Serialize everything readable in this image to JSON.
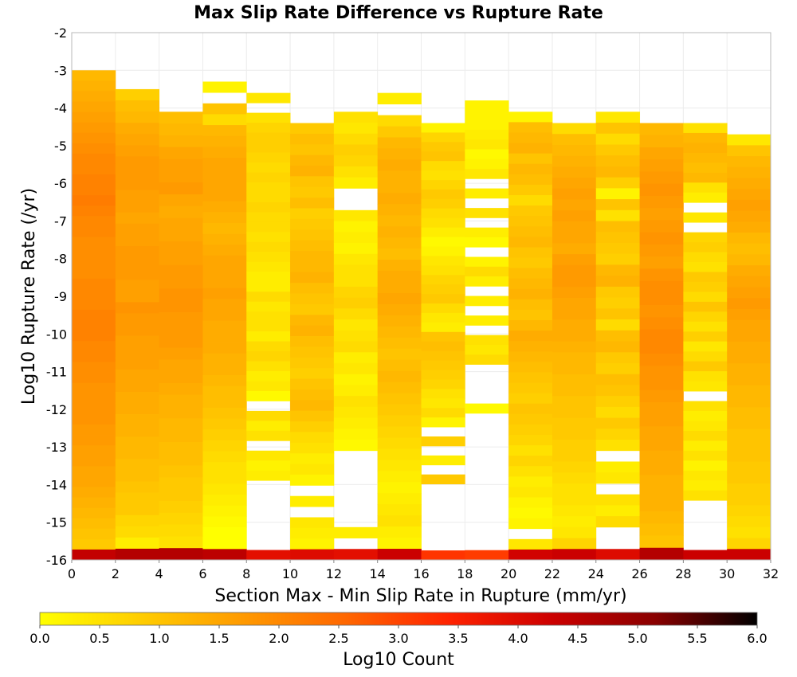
{
  "chart_data": {
    "type": "heatmap",
    "title": "Max Slip Rate Difference vs Rupture Rate",
    "xlabel": "Section Max - Min Slip Rate in Rupture (mm/yr)",
    "ylabel": "Log10 Rupture Rate (/yr)",
    "colorbar_label": "Log10 Count",
    "xlim": [
      0,
      32
    ],
    "ylim": [
      -16,
      -2
    ],
    "x_ticks": [
      "0",
      "2",
      "4",
      "6",
      "8",
      "10",
      "12",
      "14",
      "16",
      "18",
      "20",
      "22",
      "24",
      "26",
      "28",
      "30",
      "32"
    ],
    "y_ticks": [
      "-2",
      "-3",
      "-4",
      "-5",
      "-6",
      "-7",
      "-8",
      "-9",
      "-10",
      "-11",
      "-12",
      "-13",
      "-14",
      "-15",
      "-16"
    ],
    "colorbar_ticks": [
      "0.0",
      "0.5",
      "1.0",
      "1.5",
      "2.0",
      "2.5",
      "3.0",
      "3.5",
      "4.0",
      "4.5",
      "5.0",
      "5.5",
      "6.0"
    ],
    "colorbar_range": [
      0,
      6
    ],
    "x_bin_width": 2,
    "y_bin_height": 0.28,
    "grid": true,
    "colormap": [
      "#ffff00",
      "#ffcc00",
      "#ff9900",
      "#ff6600",
      "#ff2200",
      "#cc0000",
      "#8a0000",
      "#000000"
    ],
    "columns": [
      {
        "x0": 0,
        "top": -3.0,
        "values": [
          1.2,
          1.3,
          1.4,
          1.5,
          1.6,
          1.7,
          1.8,
          1.9,
          2.0,
          2.0,
          2.1,
          2.1,
          2.2,
          2.1,
          2.0,
          2.0,
          1.9,
          1.9,
          1.9,
          1.9,
          2.0,
          2.0,
          2.0,
          2.1,
          2.1,
          2.1,
          2.0,
          2.0,
          1.9,
          1.9,
          1.8,
          1.8,
          1.8,
          1.8,
          1.7,
          1.7,
          1.6,
          1.6,
          1.5,
          1.5,
          1.4,
          1.3,
          1.2,
          1.1,
          1.0,
          0.9,
          4.4
        ]
      },
      {
        "x0": 2,
        "top": -3.5,
        "values": [
          0.8,
          1.1,
          1.2,
          1.4,
          1.5,
          1.6,
          1.7,
          1.7,
          1.7,
          1.6,
          1.6,
          1.5,
          1.6,
          1.6,
          1.7,
          1.7,
          1.7,
          1.6,
          1.6,
          1.8,
          1.7,
          1.7,
          1.6,
          1.6,
          1.6,
          1.5,
          1.5,
          1.4,
          1.4,
          1.3,
          1.3,
          1.2,
          1.2,
          1.1,
          1.1,
          1.0,
          0.9,
          0.9,
          0.7,
          0.6,
          0.3,
          4.6
        ]
      },
      {
        "x0": 4,
        "top": -4.1,
        "values": [
          1.1,
          1.2,
          1.3,
          1.5,
          1.6,
          1.6,
          1.7,
          1.5,
          1.4,
          1.5,
          1.5,
          1.6,
          1.6,
          1.7,
          1.7,
          1.8,
          1.8,
          1.7,
          1.7,
          1.7,
          1.6,
          1.5,
          1.5,
          1.4,
          1.3,
          1.3,
          1.2,
          1.2,
          1.1,
          1.1,
          1.0,
          0.9,
          0.9,
          0.8,
          0.7,
          0.6,
          0.5,
          4.6
        ]
      },
      {
        "x0": 6,
        "top": -3.3,
        "values": [
          0.2,
          null,
          1.0,
          0.6,
          1.2,
          1.3,
          1.4,
          1.5,
          1.5,
          1.5,
          1.5,
          1.4,
          1.3,
          1.2,
          1.3,
          1.4,
          1.5,
          1.5,
          1.5,
          1.6,
          1.5,
          1.5,
          1.4,
          1.4,
          1.4,
          1.3,
          1.3,
          1.2,
          1.1,
          1.1,
          1.0,
          0.9,
          0.8,
          0.7,
          0.6,
          0.5,
          0.5,
          0.4,
          0.3,
          0.2,
          0.1,
          0.0,
          0.0,
          4.5
        ]
      },
      {
        "x0": 8,
        "top": -3.6,
        "values": [
          0.4,
          null,
          0.5,
          0.7,
          0.8,
          0.8,
          0.7,
          0.6,
          0.7,
          0.6,
          0.6,
          0.7,
          0.6,
          0.6,
          0.5,
          0.6,
          0.5,
          0.4,
          0.3,
          0.3,
          0.6,
          0.4,
          0.5,
          0.5,
          0.3,
          0.6,
          0.7,
          0.5,
          0.3,
          0.4,
          0.1,
          null,
          0.6,
          0.3,
          0.5,
          null,
          0.4,
          0.2,
          0.3,
          null,
          null,
          null,
          null,
          null,
          null,
          null,
          3.9
        ]
      },
      {
        "x0": 10,
        "top": -4.4,
        "values": [
          0.9,
          1.1,
          1.0,
          1.2,
          1.3,
          1.0,
          0.9,
          1.1,
          0.8,
          0.9,
          1.0,
          1.1,
          1.2,
          1.2,
          1.3,
          1.1,
          1.0,
          0.9,
          1.2,
          1.3,
          1.1,
          1.0,
          0.9,
          0.8,
          1.0,
          1.1,
          1.2,
          1.0,
          0.8,
          0.6,
          0.5,
          0.3,
          0.4,
          0.2,
          null,
          0.3,
          null,
          0.4,
          0.3,
          0.2,
          4.0
        ]
      },
      {
        "x0": 12,
        "top": -4.1,
        "values": [
          0.5,
          0.4,
          0.6,
          0.8,
          0.7,
          0.5,
          0.3,
          null,
          null,
          0.4,
          0.2,
          0.3,
          0.2,
          0.4,
          0.5,
          0.5,
          0.7,
          0.8,
          0.6,
          0.4,
          0.5,
          0.6,
          0.3,
          0.4,
          0.2,
          0.3,
          0.5,
          0.4,
          0.3,
          0.2,
          0.1,
          null,
          null,
          null,
          null,
          null,
          null,
          null,
          0.3,
          null,
          3.9
        ]
      },
      {
        "x0": 14,
        "top": -3.6,
        "values": [
          0.3,
          null,
          0.6,
          0.9,
          1.2,
          1.3,
          1.4,
          1.3,
          1.3,
          1.4,
          1.3,
          1.2,
          1.3,
          1.2,
          1.1,
          1.3,
          1.4,
          1.4,
          1.5,
          1.4,
          1.3,
          1.2,
          1.1,
          1.0,
          1.1,
          1.2,
          1.1,
          1.0,
          0.9,
          0.8,
          0.7,
          0.6,
          0.5,
          0.4,
          0.3,
          0.2,
          0.3,
          0.4,
          0.5,
          0.3,
          0.2,
          4.3
        ]
      },
      {
        "x0": 16,
        "top": -4.4,
        "values": [
          0.2,
          0.7,
          0.9,
          1.0,
          0.6,
          0.5,
          0.7,
          0.9,
          0.8,
          0.6,
          0.5,
          0.3,
          0.1,
          0.2,
          0.4,
          0.5,
          0.7,
          0.8,
          0.9,
          0.6,
          0.4,
          0.3,
          1.0,
          1.1,
          1.0,
          0.9,
          0.8,
          0.7,
          0.5,
          0.4,
          0.6,
          0.2,
          null,
          0.8,
          null,
          0.3,
          null,
          0.9,
          null,
          null,
          null,
          null,
          null,
          null,
          null,
          3.2
        ]
      },
      {
        "x0": 18,
        "top": -3.8,
        "values": [
          0.2,
          0.2,
          0.2,
          0.3,
          0.4,
          0.1,
          0.2,
          0.4,
          null,
          0.3,
          null,
          0.5,
          null,
          0.3,
          0.1,
          null,
          0.2,
          0.6,
          0.3,
          null,
          0.3,
          null,
          0.3,
          null,
          0.5,
          0.4,
          0.6,
          null,
          null,
          null,
          null,
          0.1,
          null,
          null,
          null,
          null,
          null,
          null,
          null,
          null,
          null,
          null,
          null,
          null,
          null,
          null,
          3.1
        ]
      },
      {
        "x0": 20,
        "top": -4.1,
        "values": [
          0.2,
          1.1,
          1.2,
          1.3,
          1.0,
          1.2,
          1.1,
          0.9,
          0.6,
          0.9,
          1.0,
          1.1,
          1.2,
          1.0,
          0.9,
          1.1,
          1.2,
          1.3,
          1.1,
          1.0,
          1.2,
          1.4,
          1.3,
          1.2,
          1.1,
          1.0,
          0.9,
          0.8,
          1.0,
          0.9,
          0.8,
          0.7,
          0.5,
          0.7,
          0.5,
          0.3,
          0.4,
          0.2,
          0.1,
          0.2,
          null,
          0.4,
          4.2
        ]
      },
      {
        "x0": 22,
        "top": -4.4,
        "values": [
          0.6,
          1.1,
          1.2,
          1.3,
          1.4,
          1.5,
          1.6,
          1.5,
          1.6,
          1.5,
          1.5,
          1.4,
          1.6,
          1.7,
          1.7,
          1.6,
          1.5,
          1.5,
          1.4,
          1.4,
          1.3,
          1.2,
          1.2,
          1.1,
          1.1,
          1.0,
          1.0,
          0.9,
          0.9,
          0.8,
          0.8,
          0.7,
          0.6,
          0.5,
          0.5,
          0.4,
          0.3,
          0.4,
          0.7,
          4.3
        ]
      },
      {
        "x0": 24,
        "top": -4.1,
        "values": [
          0.4,
          1.0,
          0.6,
          0.9,
          1.1,
          1.2,
          0.8,
          0.2,
          1.0,
          0.5,
          1.1,
          1.0,
          0.9,
          0.8,
          1.2,
          1.3,
          0.9,
          0.8,
          1.0,
          0.6,
          1.1,
          1.2,
          0.9,
          0.8,
          1.1,
          1.0,
          0.8,
          0.6,
          0.9,
          0.7,
          0.5,
          null,
          0.3,
          0.4,
          null,
          0.5,
          0.3,
          0.6,
          null,
          null,
          4.0
        ]
      },
      {
        "x0": 26,
        "top": -4.4,
        "values": [
          1.2,
          1.3,
          1.5,
          1.6,
          1.7,
          1.8,
          1.7,
          1.6,
          1.7,
          1.8,
          1.7,
          1.6,
          1.8,
          1.9,
          1.9,
          1.8,
          1.9,
          2.0,
          2.0,
          1.9,
          1.8,
          1.8,
          1.7,
          1.6,
          1.6,
          1.5,
          1.5,
          1.4,
          1.4,
          1.3,
          1.3,
          1.3,
          1.2,
          1.1,
          1.0,
          4.6
        ]
      },
      {
        "x0": 28,
        "top": -4.4,
        "values": [
          0.5,
          1.2,
          1.3,
          1.2,
          1.1,
          1.2,
          0.5,
          0.3,
          null,
          0.4,
          null,
          0.7,
          0.8,
          0.6,
          0.5,
          0.9,
          0.8,
          0.6,
          1.0,
          0.7,
          0.5,
          0.8,
          0.4,
          0.6,
          0.9,
          0.5,
          0.4,
          null,
          0.5,
          0.3,
          0.4,
          0.6,
          0.3,
          0.5,
          0.2,
          0.4,
          0.3,
          0.5,
          null,
          null,
          null,
          null,
          null,
          4.3
        ]
      },
      {
        "x0": 30,
        "top": -4.7,
        "values": [
          0.4,
          1.0,
          1.2,
          1.3,
          1.4,
          1.5,
          1.6,
          1.5,
          1.4,
          1.2,
          1.1,
          1.2,
          1.4,
          1.5,
          1.6,
          1.7,
          1.6,
          1.5,
          1.5,
          1.4,
          1.4,
          1.3,
          1.3,
          1.2,
          1.2,
          1.1,
          1.1,
          1.0,
          1.0,
          1.0,
          0.9,
          0.9,
          0.8,
          0.8,
          0.7,
          0.6,
          0.5,
          0.7,
          4.3
        ]
      }
    ]
  }
}
